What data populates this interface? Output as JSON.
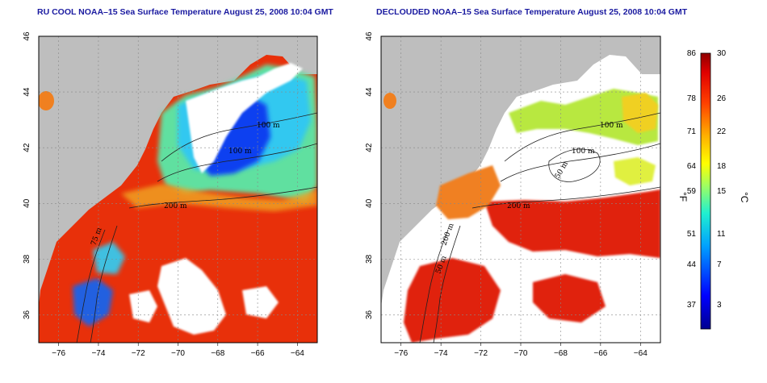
{
  "panels": [
    {
      "title": "RU COOL NOAA–15 Sea Surface Temperature August 25, 2008 10:04 GMT",
      "variant": "cloudy",
      "contour_labels": [
        "100 m",
        "100 m",
        "200 m",
        "75 m"
      ]
    },
    {
      "title": "DECLOUDED NOAA–15 Sea Surface Temperature August 25, 2008 10:04 GMT",
      "variant": "declouded",
      "contour_labels": [
        "100 m",
        "100 m",
        "50 m",
        "200 m",
        "200 m",
        "50 m"
      ]
    }
  ],
  "axes": {
    "lon_ticks": [
      "−76",
      "−74",
      "−72",
      "−70",
      "−68",
      "−66",
      "−64"
    ],
    "lat_ticks": [
      "36",
      "38",
      "40",
      "42",
      "44",
      "46"
    ],
    "lon_range": [
      -77,
      -63
    ],
    "lat_range": [
      35,
      46
    ]
  },
  "colorbar": {
    "fahrenheit_ticks": [
      "86",
      "78",
      "71",
      "64",
      "59",
      "51",
      "44",
      "37"
    ],
    "celsius_ticks": [
      "30",
      "26",
      "22",
      "18",
      "15",
      "11",
      "7",
      "3"
    ],
    "fahrenheit_unit": "°F",
    "celsius_unit": "°C",
    "range_c": [
      0,
      30
    ]
  },
  "colors": {
    "land": "#bebebe",
    "cloud": "#ffffff",
    "warm": "#e8300a",
    "title": "#1a1aa0"
  }
}
